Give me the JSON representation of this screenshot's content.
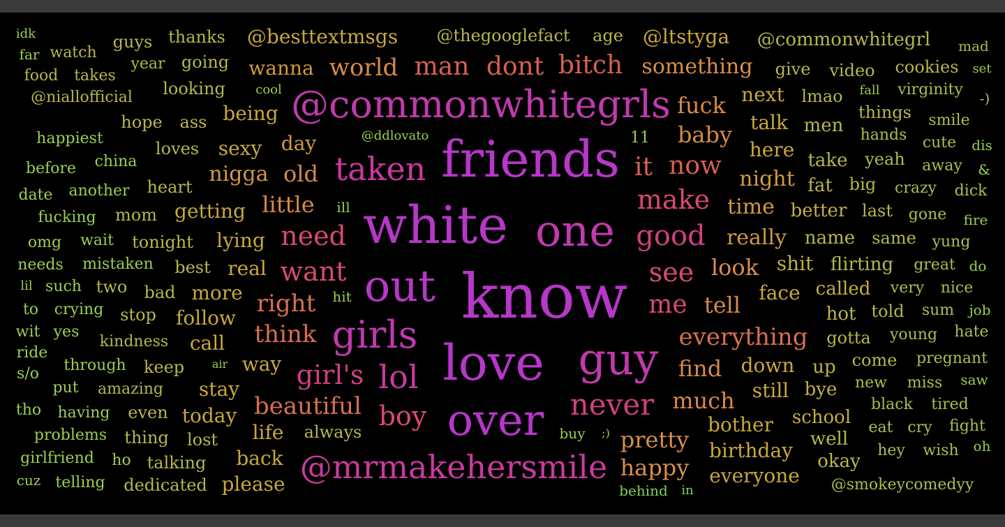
{
  "wordcloud": {
    "palette": {
      "violet": "#b637c8",
      "magenta": "#c93a9f",
      "pink": "#d94a6e",
      "coral": "#d8704f",
      "orange": "#d88a45",
      "gold": "#c8a93a",
      "khaki": "#b7b84a",
      "lime": "#9ccf4e",
      "green": "#7fd85a"
    },
    "words": [
      {
        "text": "know",
        "color": "#b637c8",
        "weight": 88
      },
      {
        "text": "white",
        "color": "#b637c8",
        "weight": 74
      },
      {
        "text": "friends",
        "color": "#b637c8",
        "weight": 72
      },
      {
        "text": "love",
        "color": "#b637c8",
        "weight": 70
      },
      {
        "text": "out",
        "color": "#b637c8",
        "weight": 62
      },
      {
        "text": "over",
        "color": "#b637c8",
        "weight": 62
      },
      {
        "text": "one",
        "color": "#c03aac",
        "weight": 62
      },
      {
        "text": "guy",
        "color": "#c03aac",
        "weight": 62
      },
      {
        "text": "@commonwhitegrls",
        "color": "#c03aac",
        "weight": 54
      },
      {
        "text": "girls",
        "color": "#c03aac",
        "weight": 54
      },
      {
        "text": "taken",
        "color": "#c93a9f",
        "weight": 46
      },
      {
        "text": "@mrmakehersmile",
        "color": "#c93a9f",
        "weight": 46
      },
      {
        "text": "lol",
        "color": "#c93a9f",
        "weight": 46
      },
      {
        "text": "never",
        "color": "#d0407f",
        "weight": 42
      },
      {
        "text": "good",
        "color": "#d0407f",
        "weight": 40
      },
      {
        "text": "girl's",
        "color": "#d0407f",
        "weight": 38
      },
      {
        "text": "boy",
        "color": "#d94a6e",
        "weight": 38
      },
      {
        "text": "make",
        "color": "#d94a6e",
        "weight": 38
      },
      {
        "text": "need",
        "color": "#d94a6e",
        "weight": 38
      },
      {
        "text": "want",
        "color": "#d94a6e",
        "weight": 38
      },
      {
        "text": "see",
        "color": "#d94a6e",
        "weight": 38
      },
      {
        "text": "me",
        "color": "#d94a6e",
        "weight": 36
      },
      {
        "text": "man",
        "color": "#d8604f",
        "weight": 36
      },
      {
        "text": "dont",
        "color": "#d8604f",
        "weight": 36
      },
      {
        "text": "bitch",
        "color": "#d8604f",
        "weight": 36
      },
      {
        "text": "it",
        "color": "#d8604f",
        "weight": 36
      },
      {
        "text": "now",
        "color": "#d8604f",
        "weight": 36
      },
      {
        "text": "right",
        "color": "#d8704f",
        "weight": 34
      },
      {
        "text": "beautiful",
        "color": "#d8704f",
        "weight": 34
      },
      {
        "text": "everything",
        "color": "#d8704f",
        "weight": 34
      },
      {
        "text": "think",
        "color": "#d8704f",
        "weight": 34
      },
      {
        "text": "world",
        "color": "#d88a45",
        "weight": 34
      },
      {
        "text": "much",
        "color": "#d88a45",
        "weight": 32
      },
      {
        "text": "find",
        "color": "#d88a45",
        "weight": 32
      },
      {
        "text": "tell",
        "color": "#d88a45",
        "weight": 32
      },
      {
        "text": "little",
        "color": "#d88a45",
        "weight": 32
      },
      {
        "text": "old",
        "color": "#d88a45",
        "weight": 32
      },
      {
        "text": "baby",
        "color": "#d88a45",
        "weight": 32
      },
      {
        "text": "fuck",
        "color": "#d88a45",
        "weight": 32
      },
      {
        "text": "look",
        "color": "#d8904a",
        "weight": 32
      },
      {
        "text": "pretty",
        "color": "#d8904a",
        "weight": 32
      },
      {
        "text": "happy",
        "color": "#d8904a",
        "weight": 32
      },
      {
        "text": "something",
        "color": "#d8904a",
        "weight": 30
      },
      {
        "text": "really",
        "color": "#d09a3e",
        "weight": 30
      },
      {
        "text": "time",
        "color": "#d09a3e",
        "weight": 30
      },
      {
        "text": "night",
        "color": "#d09a3e",
        "weight": 30
      },
      {
        "text": "nigga",
        "color": "#d09a3e",
        "weight": 30
      },
      {
        "text": "wanna",
        "color": "#d09a3e",
        "weight": 28
      },
      {
        "text": "day",
        "color": "#d09a3e",
        "weight": 28
      },
      {
        "text": "real",
        "color": "#c8a93a",
        "weight": 28
      },
      {
        "text": "lying",
        "color": "#c8a93a",
        "weight": 28
      },
      {
        "text": "way",
        "color": "#c8a93a",
        "weight": 28
      },
      {
        "text": "face",
        "color": "#c8a93a",
        "weight": 28
      },
      {
        "text": "more",
        "color": "#c8a93a",
        "weight": 28
      },
      {
        "text": "bother",
        "color": "#c8a93a",
        "weight": 28
      },
      {
        "text": "birthday",
        "color": "#c8a93a",
        "weight": 28
      },
      {
        "text": "everyone",
        "color": "#c8a93a",
        "weight": 28
      },
      {
        "text": "here",
        "color": "#c8a93a",
        "weight": 28
      },
      {
        "text": "talk",
        "color": "#c8a93a",
        "weight": 28
      },
      {
        "text": "next",
        "color": "#c8a93a",
        "weight": 28
      },
      {
        "text": "down",
        "color": "#c8a93a",
        "weight": 28
      },
      {
        "text": "still",
        "color": "#c8a93a",
        "weight": 28
      },
      {
        "text": "@besttextmsgs",
        "color": "#c8a93a",
        "weight": 28
      },
      {
        "text": "@ltstyga",
        "color": "#c8a93a",
        "weight": 28
      },
      {
        "text": "being",
        "color": "#c8a93a",
        "weight": 28
      },
      {
        "text": "sexy",
        "color": "#c8a93a",
        "weight": 28
      },
      {
        "text": "stay",
        "color": "#c8a93a",
        "weight": 28
      },
      {
        "text": "today",
        "color": "#c8a93a",
        "weight": 28
      },
      {
        "text": "life",
        "color": "#c8a93a",
        "weight": 28
      },
      {
        "text": "back",
        "color": "#c8a93a",
        "weight": 28
      },
      {
        "text": "please",
        "color": "#c8a93a",
        "weight": 28
      },
      {
        "text": "follow",
        "color": "#c8a93a",
        "weight": 28
      },
      {
        "text": "call",
        "color": "#c8a93a",
        "weight": 28
      },
      {
        "text": "getting",
        "color": "#c8a93a",
        "weight": 28
      },
      {
        "text": "shit",
        "color": "#c3b040",
        "weight": 28
      },
      {
        "text": "better",
        "color": "#c3b040",
        "weight": 26
      },
      {
        "text": "school",
        "color": "#c3b040",
        "weight": 26
      },
      {
        "text": "called",
        "color": "#c3b040",
        "weight": 26
      },
      {
        "text": "up",
        "color": "#c3b040",
        "weight": 26
      },
      {
        "text": "bye",
        "color": "#c3b040",
        "weight": 26
      },
      {
        "text": "okay",
        "color": "#b7b84a",
        "weight": 26
      },
      {
        "text": "well",
        "color": "#b7b84a",
        "weight": 26
      },
      {
        "text": "men",
        "color": "#b7b84a",
        "weight": 26
      },
      {
        "text": "take",
        "color": "#b7b84a",
        "weight": 26
      },
      {
        "text": "fat",
        "color": "#b7b84a",
        "weight": 26
      },
      {
        "text": "name",
        "color": "#b7b84a",
        "weight": 26
      },
      {
        "text": "flirting",
        "color": "#b7b84a",
        "weight": 26
      },
      {
        "text": "hot",
        "color": "#b7b84a",
        "weight": 26
      },
      {
        "text": "gotta",
        "color": "#b7b84a",
        "weight": 24
      },
      {
        "text": "give",
        "color": "#b7b84a",
        "weight": 24
      },
      {
        "text": "video",
        "color": "#b7b84a",
        "weight": 24
      },
      {
        "text": "yeah",
        "color": "#b7b84a",
        "weight": 24
      },
      {
        "text": "big",
        "color": "#b7b84a",
        "weight": 24
      },
      {
        "text": "last",
        "color": "#b7b84a",
        "weight": 24
      },
      {
        "text": "same",
        "color": "#b7b84a",
        "weight": 24
      },
      {
        "text": "told",
        "color": "#b7b84a",
        "weight": 24
      },
      {
        "text": "come",
        "color": "#b7b84a",
        "weight": 24
      },
      {
        "text": "lmao",
        "color": "#b7b84a",
        "weight": 24
      },
      {
        "text": "things",
        "color": "#b7b84a",
        "weight": 24
      },
      {
        "text": "cookies",
        "color": "#b7b84a",
        "weight": 24
      },
      {
        "text": "@commonwhitegrl",
        "color": "#b7b84a",
        "weight": 26
      },
      {
        "text": "@thegooglefact",
        "color": "#b7b84a",
        "weight": 24
      },
      {
        "text": "age",
        "color": "#b7b84a",
        "weight": 24
      },
      {
        "text": "thanks",
        "color": "#b7b84a",
        "weight": 24
      },
      {
        "text": "going",
        "color": "#b7b84a",
        "weight": 24
      },
      {
        "text": "looking",
        "color": "#b7b84a",
        "weight": 24
      },
      {
        "text": "guys",
        "color": "#b7b84a",
        "weight": 24
      },
      {
        "text": "year",
        "color": "#b7b84a",
        "weight": 22
      },
      {
        "text": "watch",
        "color": "#b7b84a",
        "weight": 22
      },
      {
        "text": "takes",
        "color": "#b7b84a",
        "weight": 22
      },
      {
        "text": "food",
        "color": "#b7b84a",
        "weight": 22
      },
      {
        "text": "@niallofficial",
        "color": "#b7b84a",
        "weight": 22
      },
      {
        "text": "hope",
        "color": "#b7b84a",
        "weight": 24
      },
      {
        "text": "ass",
        "color": "#b7b84a",
        "weight": 24
      },
      {
        "text": "loves",
        "color": "#b7b84a",
        "weight": 24
      },
      {
        "text": "heart",
        "color": "#b7b84a",
        "weight": 24
      },
      {
        "text": "mom",
        "color": "#b7b84a",
        "weight": 24
      },
      {
        "text": "tonight",
        "color": "#b7b84a",
        "weight": 24
      },
      {
        "text": "best",
        "color": "#b7b84a",
        "weight": 24
      },
      {
        "text": "bad",
        "color": "#b7b84a",
        "weight": 24
      },
      {
        "text": "stop",
        "color": "#b7b84a",
        "weight": 24
      },
      {
        "text": "two",
        "color": "#b7b84a",
        "weight": 24
      },
      {
        "text": "keep",
        "color": "#b7b84a",
        "weight": 24
      },
      {
        "text": "lost",
        "color": "#b7b84a",
        "weight": 24
      },
      {
        "text": "even",
        "color": "#b7b84a",
        "weight": 24
      },
      {
        "text": "talking",
        "color": "#b7b84a",
        "weight": 24
      },
      {
        "text": "dedicated",
        "color": "#b7b84a",
        "weight": 24
      },
      {
        "text": "thing",
        "color": "#b7b84a",
        "weight": 24
      },
      {
        "text": "always",
        "color": "#b7b84a",
        "weight": 24
      },
      {
        "text": "kindness",
        "color": "#b7b84a",
        "weight": 22
      },
      {
        "text": "amazing",
        "color": "#b7b84a",
        "weight": 22
      },
      {
        "text": "young",
        "color": "#a8c04c",
        "weight": 22
      },
      {
        "text": "very",
        "color": "#a8c04c",
        "weight": 22
      },
      {
        "text": "nice",
        "color": "#a8c04c",
        "weight": 22
      },
      {
        "text": "sum",
        "color": "#a8c04c",
        "weight": 22
      },
      {
        "text": "great",
        "color": "#a8c04c",
        "weight": 22
      },
      {
        "text": "gone",
        "color": "#a8c04c",
        "weight": 22
      },
      {
        "text": "crazy",
        "color": "#a8c04c",
        "weight": 22
      },
      {
        "text": "virginity",
        "color": "#a8c04c",
        "weight": 22
      },
      {
        "text": "smile",
        "color": "#a8c04c",
        "weight": 22
      },
      {
        "text": "hands",
        "color": "#a8c04c",
        "weight": 22
      },
      {
        "text": "cute",
        "color": "#a8c04c",
        "weight": 22
      },
      {
        "text": "away",
        "color": "#a8c04c",
        "weight": 22
      },
      {
        "text": "yung",
        "color": "#a8c04c",
        "weight": 22
      },
      {
        "text": "pregnant",
        "color": "#a8c04c",
        "weight": 22
      },
      {
        "text": "new",
        "color": "#a8c04c",
        "weight": 22
      },
      {
        "text": "miss",
        "color": "#a8c04c",
        "weight": 22
      },
      {
        "text": "black",
        "color": "#a8c04c",
        "weight": 22
      },
      {
        "text": "tired",
        "color": "#a8c04c",
        "weight": 22
      },
      {
        "text": "eat",
        "color": "#a8c04c",
        "weight": 22
      },
      {
        "text": "cry",
        "color": "#a8c04c",
        "weight": 22
      },
      {
        "text": "fight",
        "color": "#a8c04c",
        "weight": 22
      },
      {
        "text": "hey",
        "color": "#a8c04c",
        "weight": 22
      },
      {
        "text": "wish",
        "color": "#a8c04c",
        "weight": 22
      },
      {
        "text": "hate",
        "color": "#a8c04c",
        "weight": 22
      },
      {
        "text": "@smokeycomedyy",
        "color": "#a8c04c",
        "weight": 22
      },
      {
        "text": "mad",
        "color": "#a8c04c",
        "weight": 20
      },
      {
        "text": "dick",
        "color": "#a8c04c",
        "weight": 22
      },
      {
        "text": "fire",
        "color": "#9ccf4e",
        "weight": 20
      },
      {
        "text": "job",
        "color": "#9ccf4e",
        "weight": 20
      },
      {
        "text": "do",
        "color": "#9ccf4e",
        "weight": 20
      },
      {
        "text": "saw",
        "color": "#9ccf4e",
        "weight": 20
      },
      {
        "text": "oh",
        "color": "#9ccf4e",
        "weight": 20
      },
      {
        "text": "dis",
        "color": "#9ccf4e",
        "weight": 20
      },
      {
        "text": "&",
        "color": "#9ccf4e",
        "weight": 20
      },
      {
        "text": "-)",
        "color": "#9ccf4e",
        "weight": 20
      },
      {
        "text": "set",
        "color": "#9ccf4e",
        "weight": 18
      },
      {
        "text": "fall",
        "color": "#9ccf4e",
        "weight": 18
      },
      {
        "text": "idk",
        "color": "#9ccf4e",
        "weight": 18
      },
      {
        "text": "far",
        "color": "#9ccf4e",
        "weight": 20
      },
      {
        "text": "cool",
        "color": "#9ccf4e",
        "weight": 18
      },
      {
        "text": "happiest",
        "color": "#9ccf4e",
        "weight": 22
      },
      {
        "text": "before",
        "color": "#9ccf4e",
        "weight": 22
      },
      {
        "text": "china",
        "color": "#9ccf4e",
        "weight": 22
      },
      {
        "text": "date",
        "color": "#9ccf4e",
        "weight": 22
      },
      {
        "text": "another",
        "color": "#9ccf4e",
        "weight": 22
      },
      {
        "text": "fucking",
        "color": "#9ccf4e",
        "weight": 22
      },
      {
        "text": "omg",
        "color": "#9ccf4e",
        "weight": 22
      },
      {
        "text": "wait",
        "color": "#9ccf4e",
        "weight": 22
      },
      {
        "text": "needs",
        "color": "#9ccf4e",
        "weight": 22
      },
      {
        "text": "mistaken",
        "color": "#9ccf4e",
        "weight": 22
      },
      {
        "text": "lil",
        "color": "#9ccf4e",
        "weight": 18
      },
      {
        "text": "such",
        "color": "#9ccf4e",
        "weight": 22
      },
      {
        "text": "to",
        "color": "#9ccf4e",
        "weight": 22
      },
      {
        "text": "crying",
        "color": "#9ccf4e",
        "weight": 22
      },
      {
        "text": "wit",
        "color": "#9ccf4e",
        "weight": 22
      },
      {
        "text": "yes",
        "color": "#9ccf4e",
        "weight": 22
      },
      {
        "text": "ride",
        "color": "#9ccf4e",
        "weight": 22
      },
      {
        "text": "s/o",
        "color": "#9ccf4e",
        "weight": 22
      },
      {
        "text": "through",
        "color": "#9ccf4e",
        "weight": 22
      },
      {
        "text": "put",
        "color": "#9ccf4e",
        "weight": 22
      },
      {
        "text": "tho",
        "color": "#9ccf4e",
        "weight": 22
      },
      {
        "text": "having",
        "color": "#9ccf4e",
        "weight": 22
      },
      {
        "text": "problems",
        "color": "#9ccf4e",
        "weight": 22
      },
      {
        "text": "girlfriend",
        "color": "#9ccf4e",
        "weight": 22
      },
      {
        "text": "ho",
        "color": "#9ccf4e",
        "weight": 22
      },
      {
        "text": "cuz",
        "color": "#9ccf4e",
        "weight": 20
      },
      {
        "text": "telling",
        "color": "#9ccf4e",
        "weight": 22
      },
      {
        "text": "@ddlovato",
        "color": "#9ccf4e",
        "weight": 18
      },
      {
        "text": "11",
        "color": "#9ccf4e",
        "weight": 22
      },
      {
        "text": "ill",
        "color": "#9ccf4e",
        "weight": 20
      },
      {
        "text": "hit",
        "color": "#9ccf4e",
        "weight": 20
      },
      {
        "text": "air",
        "color": "#9ccf4e",
        "weight": 16
      },
      {
        "text": "buy",
        "color": "#9ccf4e",
        "weight": 20
      },
      {
        "text": ";)",
        "color": "#9ccf4e",
        "weight": 16
      },
      {
        "text": "behind",
        "color": "#7fd85a",
        "weight": 20
      },
      {
        "text": "in",
        "color": "#7fd85a",
        "weight": 18
      }
    ]
  }
}
